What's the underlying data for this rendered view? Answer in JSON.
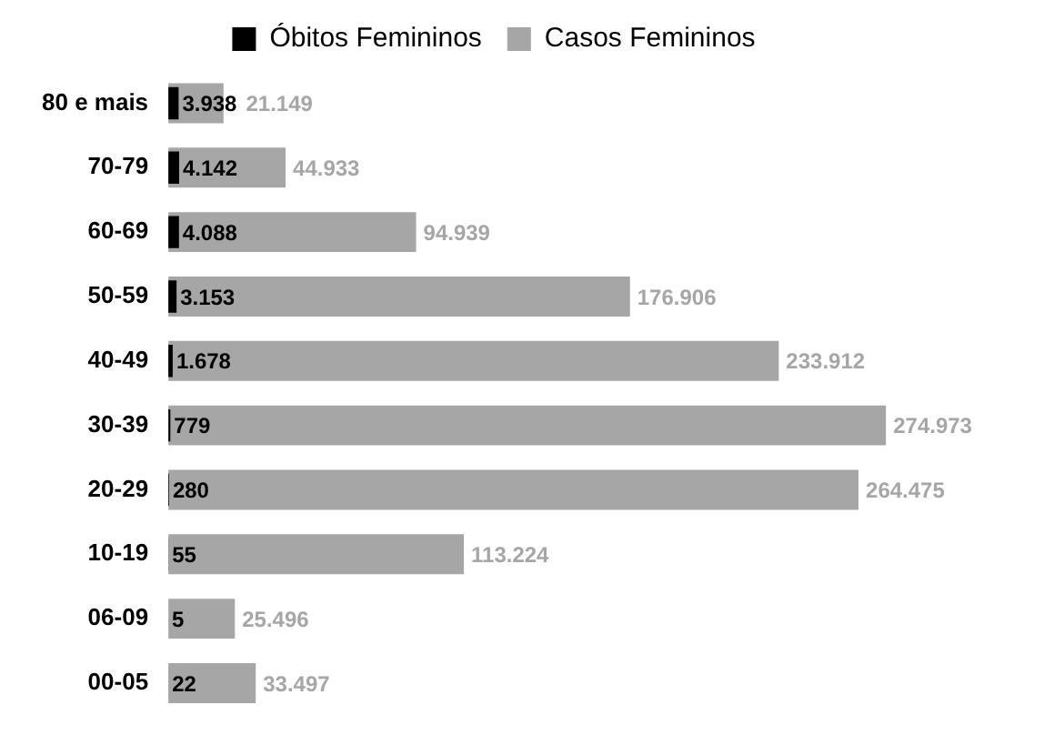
{
  "chart_data": {
    "type": "bar",
    "orientation": "horizontal",
    "legend": "top",
    "tick_labels": "y",
    "categories": [
      "80 e mais",
      "70-79",
      "60-69",
      "50-59",
      "40-49",
      "30-39",
      "20-29",
      "10-19",
      "06-09",
      "00-05"
    ],
    "series": [
      {
        "name": "Óbitos Femininos",
        "color": "#000000",
        "values": [
          3938,
          4142,
          4088,
          3153,
          1678,
          779,
          280,
          55,
          5,
          22
        ],
        "value_labels": [
          "3.938",
          "4.142",
          "4.088",
          "3.153",
          "1.678",
          "779",
          "280",
          "55",
          "5",
          "22"
        ]
      },
      {
        "name": "Casos Femininos",
        "color": "#a6a6a6",
        "values": [
          21149,
          44933,
          94939,
          176906,
          233912,
          274973,
          264475,
          113224,
          25496,
          33497
        ],
        "value_labels": [
          "21.149",
          "44.933",
          "94.939",
          "176.906",
          "233.912",
          "274.973",
          "264.475",
          "113.224",
          "25.496",
          "33.497"
        ]
      }
    ]
  }
}
